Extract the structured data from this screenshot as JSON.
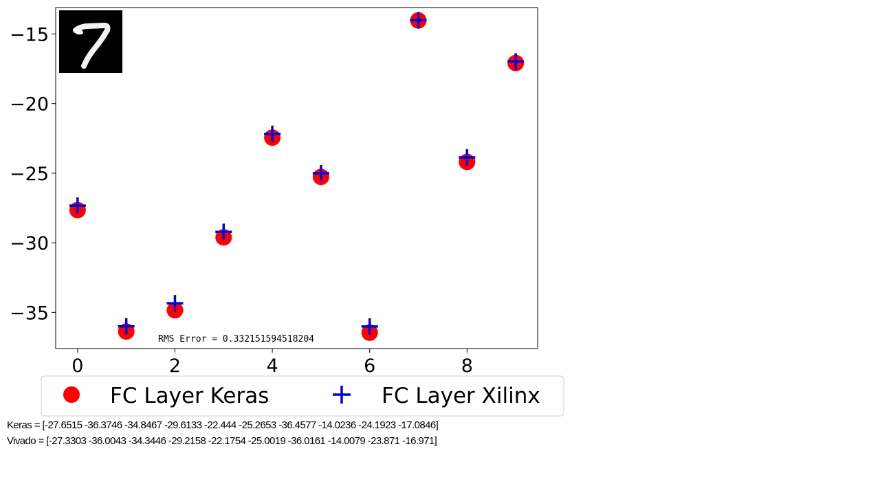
{
  "chart_data": {
    "type": "scatter",
    "title": "",
    "xlabel": "",
    "ylabel": "",
    "xlim": [
      -0.45,
      9.45
    ],
    "ylim": [
      -37.6,
      -13.1
    ],
    "xticks": [
      0,
      2,
      4,
      6,
      8
    ],
    "yticks": [
      -15,
      -20,
      -25,
      -30,
      -35
    ],
    "xtick_labels": [
      "0",
      "2",
      "4",
      "6",
      "8"
    ],
    "ytick_labels": [
      "−15",
      "−20",
      "−25",
      "−30",
      "−35"
    ],
    "grid": false,
    "legend_position": "below",
    "series": [
      {
        "name": "FC Layer Keras",
        "marker": "circle",
        "color": "#ff0000",
        "x": [
          0,
          1,
          2,
          3,
          4,
          5,
          6,
          7,
          8,
          9
        ],
        "y": [
          -27.6515,
          -36.3746,
          -34.8467,
          -29.6133,
          -22.444,
          -25.2653,
          -36.4577,
          -14.0236,
          -24.1923,
          -17.0846
        ]
      },
      {
        "name": "FC Layer Xilinx",
        "marker": "plus",
        "color": "#0000dd",
        "x": [
          0,
          1,
          2,
          3,
          4,
          5,
          6,
          7,
          8,
          9
        ],
        "y": [
          -27.3303,
          -36.0043,
          -34.3446,
          -29.2158,
          -22.1754,
          -25.0019,
          -36.0161,
          -14.0079,
          -23.871,
          -16.971
        ]
      }
    ],
    "annotation": "RMS Error = 0.332151594518204",
    "inset_image": "handwritten-digit-7"
  },
  "footer": {
    "keras_line": "Keras = [-27.6515 -36.3746 -34.8467 -29.6133 -22.444  -25.2653 -36.4577 -14.0236 -24.1923 -17.0846]",
    "vivado_line": "Vivado = [-27.3303 -36.0043 -34.3446 -29.2158 -22.1754 -25.0019 -36.0161 -14.0079 -23.871  -16.971]"
  }
}
